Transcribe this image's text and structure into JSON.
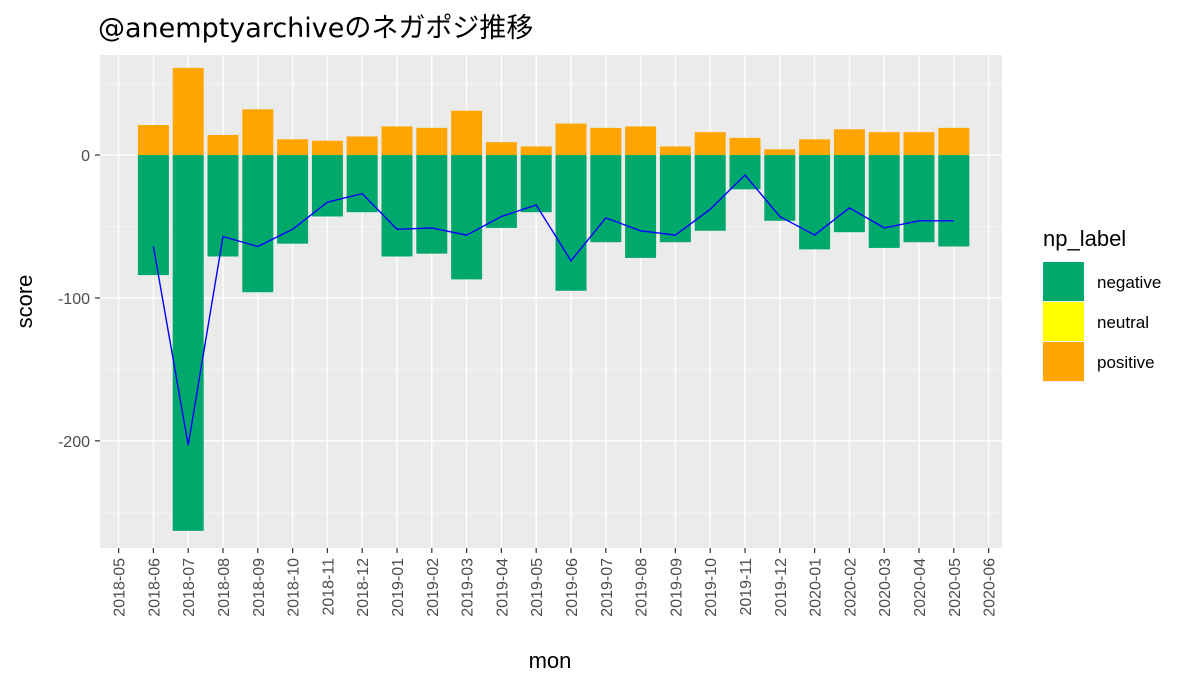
{
  "chart_data": {
    "type": "bar",
    "title": "@anemptyarchiveのネガポジ推移",
    "xlabel": "mon",
    "ylabel": "score",
    "x_ticks": [
      "2018-05",
      "2018-06",
      "2018-07",
      "2018-08",
      "2018-09",
      "2018-10",
      "2018-11",
      "2018-12",
      "2019-01",
      "2019-02",
      "2019-03",
      "2019-04",
      "2019-05",
      "2019-06",
      "2019-07",
      "2019-08",
      "2019-09",
      "2019-10",
      "2019-11",
      "2019-12",
      "2020-01",
      "2020-02",
      "2020-03",
      "2020-04",
      "2020-05",
      "2020-06"
    ],
    "y_ticks": [
      0,
      -100,
      -200
    ],
    "y_tick_labels": [
      "0",
      "-100",
      "-200"
    ],
    "ylim": [
      -275,
      70
    ],
    "grid": true,
    "legend_position": "right",
    "legend": {
      "title": "np_label",
      "entries": [
        {
          "label": "negative",
          "color": "#00A86B"
        },
        {
          "label": "neutral",
          "color": "#FFFF00"
        },
        {
          "label": "positive",
          "color": "#FFA500"
        }
      ]
    },
    "categories": [
      "2018-06",
      "2018-07",
      "2018-08",
      "2018-09",
      "2018-10",
      "2018-11",
      "2018-12",
      "2019-01",
      "2019-02",
      "2019-03",
      "2019-04",
      "2019-05",
      "2019-06",
      "2019-07",
      "2019-08",
      "2019-09",
      "2019-10",
      "2019-11",
      "2019-12",
      "2020-01",
      "2020-02",
      "2020-03",
      "2020-04",
      "2020-05"
    ],
    "series": [
      {
        "name": "negative",
        "color": "#00A86B",
        "values": [
          -84,
          -263,
          -71,
          -96,
          -62,
          -43,
          -40,
          -71,
          -69,
          -87,
          -51,
          -40,
          -95,
          -61,
          -72,
          -61,
          -53,
          -24,
          -46,
          -66,
          -54,
          -65,
          -61,
          -64
        ]
      },
      {
        "name": "neutral",
        "color": "#FFFF00",
        "values": [
          0,
          0,
          0,
          0,
          0,
          0,
          0,
          0,
          0,
          0,
          0,
          0,
          0,
          0,
          0,
          0,
          0,
          0,
          0,
          0,
          0,
          0,
          0,
          0
        ]
      },
      {
        "name": "positive",
        "color": "#FFA500",
        "values": [
          21,
          61,
          14,
          32,
          11,
          10,
          13,
          20,
          19,
          31,
          9,
          6,
          22,
          19,
          20,
          6,
          16,
          12,
          4,
          11,
          18,
          16,
          16,
          19
        ]
      }
    ],
    "line": {
      "color": "#0000FF",
      "values": [
        -64,
        -203,
        -57,
        -64,
        -52,
        -33,
        -27,
        -52,
        -51,
        -56,
        -43,
        -35,
        -74,
        -44,
        -53,
        -56,
        -38,
        -14,
        -43,
        -56,
        -37,
        -51,
        -46,
        -46
      ]
    }
  }
}
